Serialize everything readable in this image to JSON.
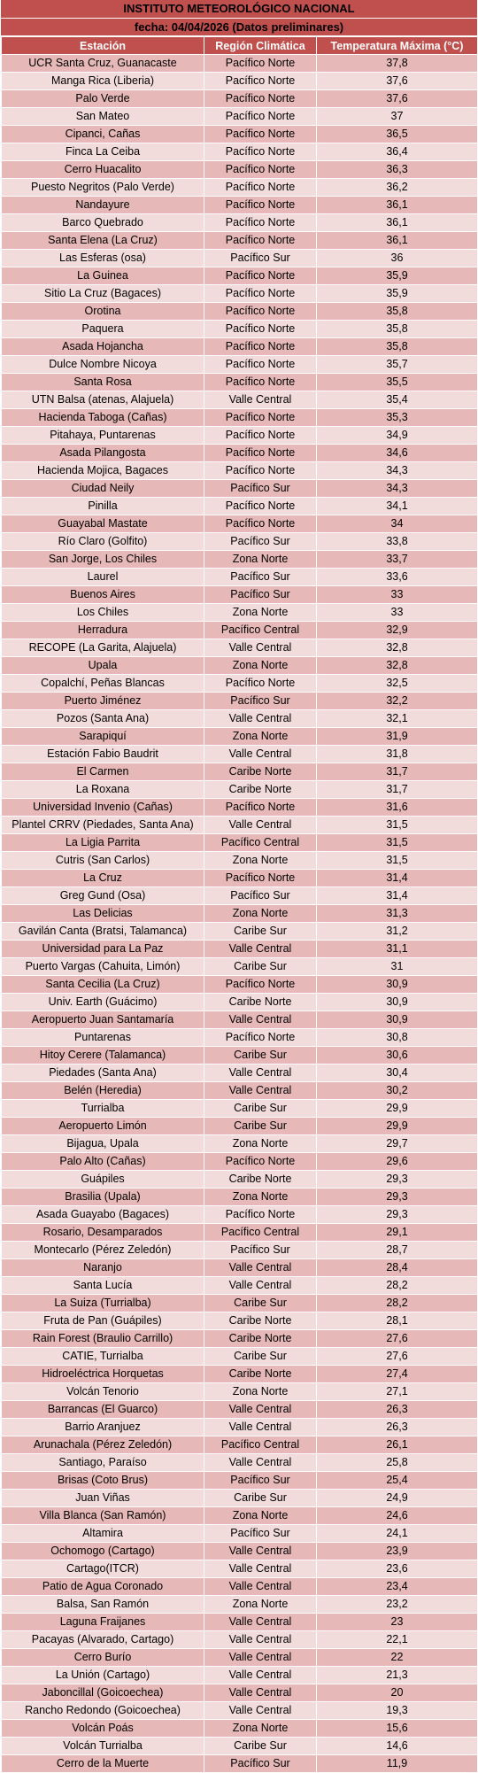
{
  "header": {
    "title": "INSTITUTO METEOROLÓGICO NACIONAL",
    "subtitle": "fecha: 04/04/2026 (Datos preliminares)"
  },
  "columns": [
    "Estación",
    "Región Climática",
    "Temperatura Máxima (°C)"
  ],
  "rows": [
    [
      "UCR Santa Cruz, Guanacaste",
      "Pacífico Norte",
      "37,8"
    ],
    [
      "Manga Rica (Liberia)",
      "Pacífico Norte",
      "37,6"
    ],
    [
      "Palo Verde",
      "Pacífico Norte",
      "37,6"
    ],
    [
      "San Mateo",
      "Pacífico Norte",
      "37"
    ],
    [
      "Cipanci, Cañas",
      "Pacífico Norte",
      "36,5"
    ],
    [
      "Finca La Ceiba",
      "Pacífico Norte",
      "36,4"
    ],
    [
      "Cerro Huacalito",
      "Pacífico Norte",
      "36,3"
    ],
    [
      "Puesto Negritos (Palo Verde)",
      "Pacífico Norte",
      "36,2"
    ],
    [
      "Nandayure",
      "Pacífico Norte",
      "36,1"
    ],
    [
      "Barco Quebrado",
      "Pacífico Norte",
      "36,1"
    ],
    [
      "Santa Elena (La Cruz)",
      "Pacífico Norte",
      "36,1"
    ],
    [
      "Las Esferas (osa)",
      "Pacífico Sur",
      "36"
    ],
    [
      "La Guinea",
      "Pacífico Norte",
      "35,9"
    ],
    [
      "Sitio La Cruz (Bagaces)",
      "Pacífico Norte",
      "35,9"
    ],
    [
      "Orotina",
      "Pacífico Norte",
      "35,8"
    ],
    [
      "Paquera",
      "Pacífico Norte",
      "35,8"
    ],
    [
      "Asada Hojancha",
      "Pacífico Norte",
      "35,8"
    ],
    [
      "Dulce Nombre Nicoya",
      "Pacífico Norte",
      "35,7"
    ],
    [
      "Santa Rosa",
      "Pacífico Norte",
      "35,5"
    ],
    [
      "UTN Balsa (atenas, Alajuela)",
      "Valle Central",
      "35,4"
    ],
    [
      "Hacienda Taboga (Cañas)",
      "Pacífico Norte",
      "35,3"
    ],
    [
      "Pitahaya, Puntarenas",
      "Pacífico Norte",
      "34,9"
    ],
    [
      "Asada Pilangosta",
      "Pacífico Norte",
      "34,6"
    ],
    [
      "Hacienda Mojica, Bagaces",
      "Pacífico Norte",
      "34,3"
    ],
    [
      "Ciudad Neily",
      "Pacífico Sur",
      "34,3"
    ],
    [
      "Pinilla",
      "Pacífico Norte",
      "34,1"
    ],
    [
      "Guayabal Mastate",
      "Pacífico Norte",
      "34"
    ],
    [
      "Río Claro (Golfito)",
      "Pacífico Sur",
      "33,8"
    ],
    [
      "San Jorge, Los Chiles",
      "Zona Norte",
      "33,7"
    ],
    [
      "Laurel",
      "Pacífico Sur",
      "33,6"
    ],
    [
      "Buenos Aires",
      "Pacífico Sur",
      "33"
    ],
    [
      "Los Chiles",
      "Zona Norte",
      "33"
    ],
    [
      "Herradura",
      "Pacífico Central",
      "32,9"
    ],
    [
      "RECOPE (La Garita, Alajuela)",
      "Valle Central",
      "32,8"
    ],
    [
      "Upala",
      "Zona Norte",
      "32,8"
    ],
    [
      "Copalchí, Peñas Blancas",
      "Pacífico Norte",
      "32,5"
    ],
    [
      "Puerto Jiménez",
      "Pacífico Sur",
      "32,2"
    ],
    [
      "Pozos (Santa Ana)",
      "Valle Central",
      "32,1"
    ],
    [
      "Sarapiquí",
      "Zona Norte",
      "31,9"
    ],
    [
      "Estación Fabio Baudrit",
      "Valle Central",
      "31,8"
    ],
    [
      "El Carmen",
      "Caribe Norte",
      "31,7"
    ],
    [
      "La Roxana",
      "Caribe Norte",
      "31,7"
    ],
    [
      "Universidad Invenio (Cañas)",
      "Pacífico Norte",
      "31,6"
    ],
    [
      "Plantel CRRV (Piedades, Santa Ana)",
      "Valle Central",
      "31,5"
    ],
    [
      "La Ligia Parrita",
      "Pacífico Central",
      "31,5"
    ],
    [
      "Cutris (San Carlos)",
      "Zona Norte",
      "31,5"
    ],
    [
      "La Cruz",
      "Pacífico Norte",
      "31,4"
    ],
    [
      "Greg Gund (Osa)",
      "Pacífico Sur",
      "31,4"
    ],
    [
      "Las Delicias",
      "Zona Norte",
      "31,3"
    ],
    [
      "Gavilán Canta (Bratsi, Talamanca)",
      "Caribe Sur",
      "31,2"
    ],
    [
      "Universidad para La Paz",
      "Valle Central",
      "31,1"
    ],
    [
      "Puerto Vargas (Cahuita, Limón)",
      "Caribe Sur",
      "31"
    ],
    [
      "Santa Cecilia (La Cruz)",
      "Pacífico Norte",
      "30,9"
    ],
    [
      "Univ. Earth (Guácimo)",
      "Caribe Norte",
      "30,9"
    ],
    [
      "Aeropuerto Juan Santamaría",
      "Valle Central",
      "30,9"
    ],
    [
      "Puntarenas",
      "Pacífico Norte",
      "30,8"
    ],
    [
      "Hitoy Cerere (Talamanca)",
      "Caribe Sur",
      "30,6"
    ],
    [
      "Piedades (Santa Ana)",
      "Valle Central",
      "30,4"
    ],
    [
      "Belén (Heredia)",
      "Valle Central",
      "30,2"
    ],
    [
      "Turrialba",
      "Caribe Sur",
      "29,9"
    ],
    [
      "Aeropuerto Limón",
      "Caribe Sur",
      "29,9"
    ],
    [
      "Bijagua, Upala",
      "Zona Norte",
      "29,7"
    ],
    [
      "Palo Alto (Cañas)",
      "Pacífico Norte",
      "29,6"
    ],
    [
      "Guápiles",
      "Caribe Norte",
      "29,3"
    ],
    [
      "Brasilia (Upala)",
      "Zona Norte",
      "29,3"
    ],
    [
      "Asada Guayabo (Bagaces)",
      "Pacífico Norte",
      "29,3"
    ],
    [
      "Rosario, Desamparados",
      "Pacífico Central",
      "29,1"
    ],
    [
      "Montecarlo (Pérez Zeledón)",
      "Pacífico Sur",
      "28,7"
    ],
    [
      "Naranjo",
      "Valle Central",
      "28,4"
    ],
    [
      "Santa Lucía",
      "Valle Central",
      "28,2"
    ],
    [
      "La Suiza (Turrialba)",
      "Caribe Sur",
      "28,2"
    ],
    [
      "Fruta de Pan (Guápiles)",
      "Caribe Norte",
      "28,1"
    ],
    [
      "Rain Forest (Braulio Carrillo)",
      "Caribe Norte",
      "27,6"
    ],
    [
      "CATIE, Turrialba",
      "Caribe Sur",
      "27,6"
    ],
    [
      "Hidroeléctrica Horquetas",
      "Caribe Norte",
      "27,4"
    ],
    [
      "Volcán Tenorio",
      "Zona Norte",
      "27,1"
    ],
    [
      "Barrancas (El Guarco)",
      "Valle Central",
      "26,3"
    ],
    [
      "Barrio Aranjuez",
      "Valle Central",
      "26,3"
    ],
    [
      "Arunachala (Pérez Zeledón)",
      "Pacífico Central",
      "26,1"
    ],
    [
      "Santiago, Paraíso",
      "Valle Central",
      "25,8"
    ],
    [
      "Brisas (Coto Brus)",
      "Pacífico Sur",
      "25,4"
    ],
    [
      "Juan Viñas",
      "Caribe Sur",
      "24,9"
    ],
    [
      "Villa Blanca (San Ramón)",
      "Zona Norte",
      "24,6"
    ],
    [
      "Altamira",
      "Pacífico Sur",
      "24,1"
    ],
    [
      "Ochomogo (Cartago)",
      "Valle Central",
      "23,9"
    ],
    [
      "Cartago(ITCR)",
      "Valle Central",
      "23,6"
    ],
    [
      "Patio de Agua Coronado",
      "Valle Central",
      "23,4"
    ],
    [
      "Balsa, San Ramón",
      "Zona Norte",
      "23,2"
    ],
    [
      "Laguna Fraijanes",
      "Valle Central",
      "23"
    ],
    [
      "Pacayas (Alvarado, Cartago)",
      "Valle Central",
      "22,1"
    ],
    [
      "Cerro Burío",
      "Valle Central",
      "22"
    ],
    [
      "La Unión (Cartago)",
      "Valle Central",
      "21,3"
    ],
    [
      "Jaboncillal (Goicoechea)",
      "Valle Central",
      "20"
    ],
    [
      "Rancho Redondo (Goicoechea)",
      "Valle Central",
      "19,3"
    ],
    [
      "Volcán Poás",
      "Zona Norte",
      "15,6"
    ],
    [
      "Volcán Turrialba",
      "Caribe Sur",
      "14,6"
    ],
    [
      "Cerro de la Muerte",
      "Pacífico Sur",
      "11,9"
    ]
  ]
}
